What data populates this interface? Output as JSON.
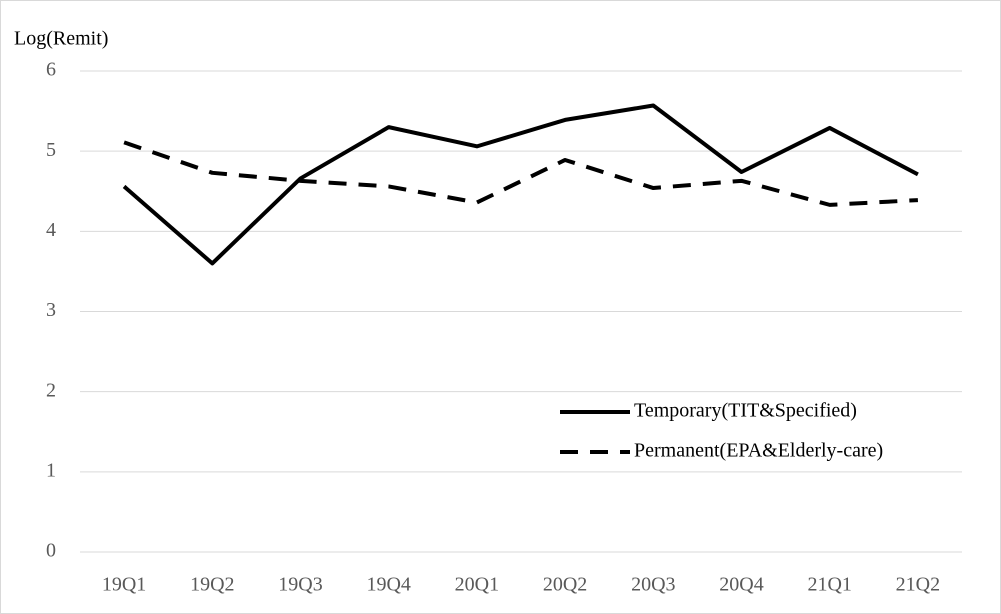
{
  "chart_data": {
    "type": "line",
    "y_label": "Log(Remit)",
    "categories": [
      "19Q1",
      "19Q2",
      "19Q3",
      "19Q4",
      "20Q1",
      "20Q2",
      "20Q3",
      "20Q4",
      "21Q1",
      "21Q2"
    ],
    "series": [
      {
        "name": "Temporary(TIT&Specified)",
        "color": "#000000",
        "dash": "solid",
        "values": [
          4.56,
          3.6,
          4.66,
          5.3,
          5.06,
          5.39,
          5.57,
          4.74,
          5.29,
          4.71
        ]
      },
      {
        "name": "Permanent(EPA&Elderly-care)",
        "color": "#000000",
        "dash": "dashed",
        "values": [
          5.11,
          4.73,
          4.63,
          4.56,
          4.36,
          4.89,
          4.54,
          4.63,
          4.33,
          4.39
        ]
      }
    ],
    "ylim": [
      0,
      6
    ],
    "yticks": [
      0,
      1,
      2,
      3,
      4,
      5,
      6
    ],
    "grid": true
  }
}
